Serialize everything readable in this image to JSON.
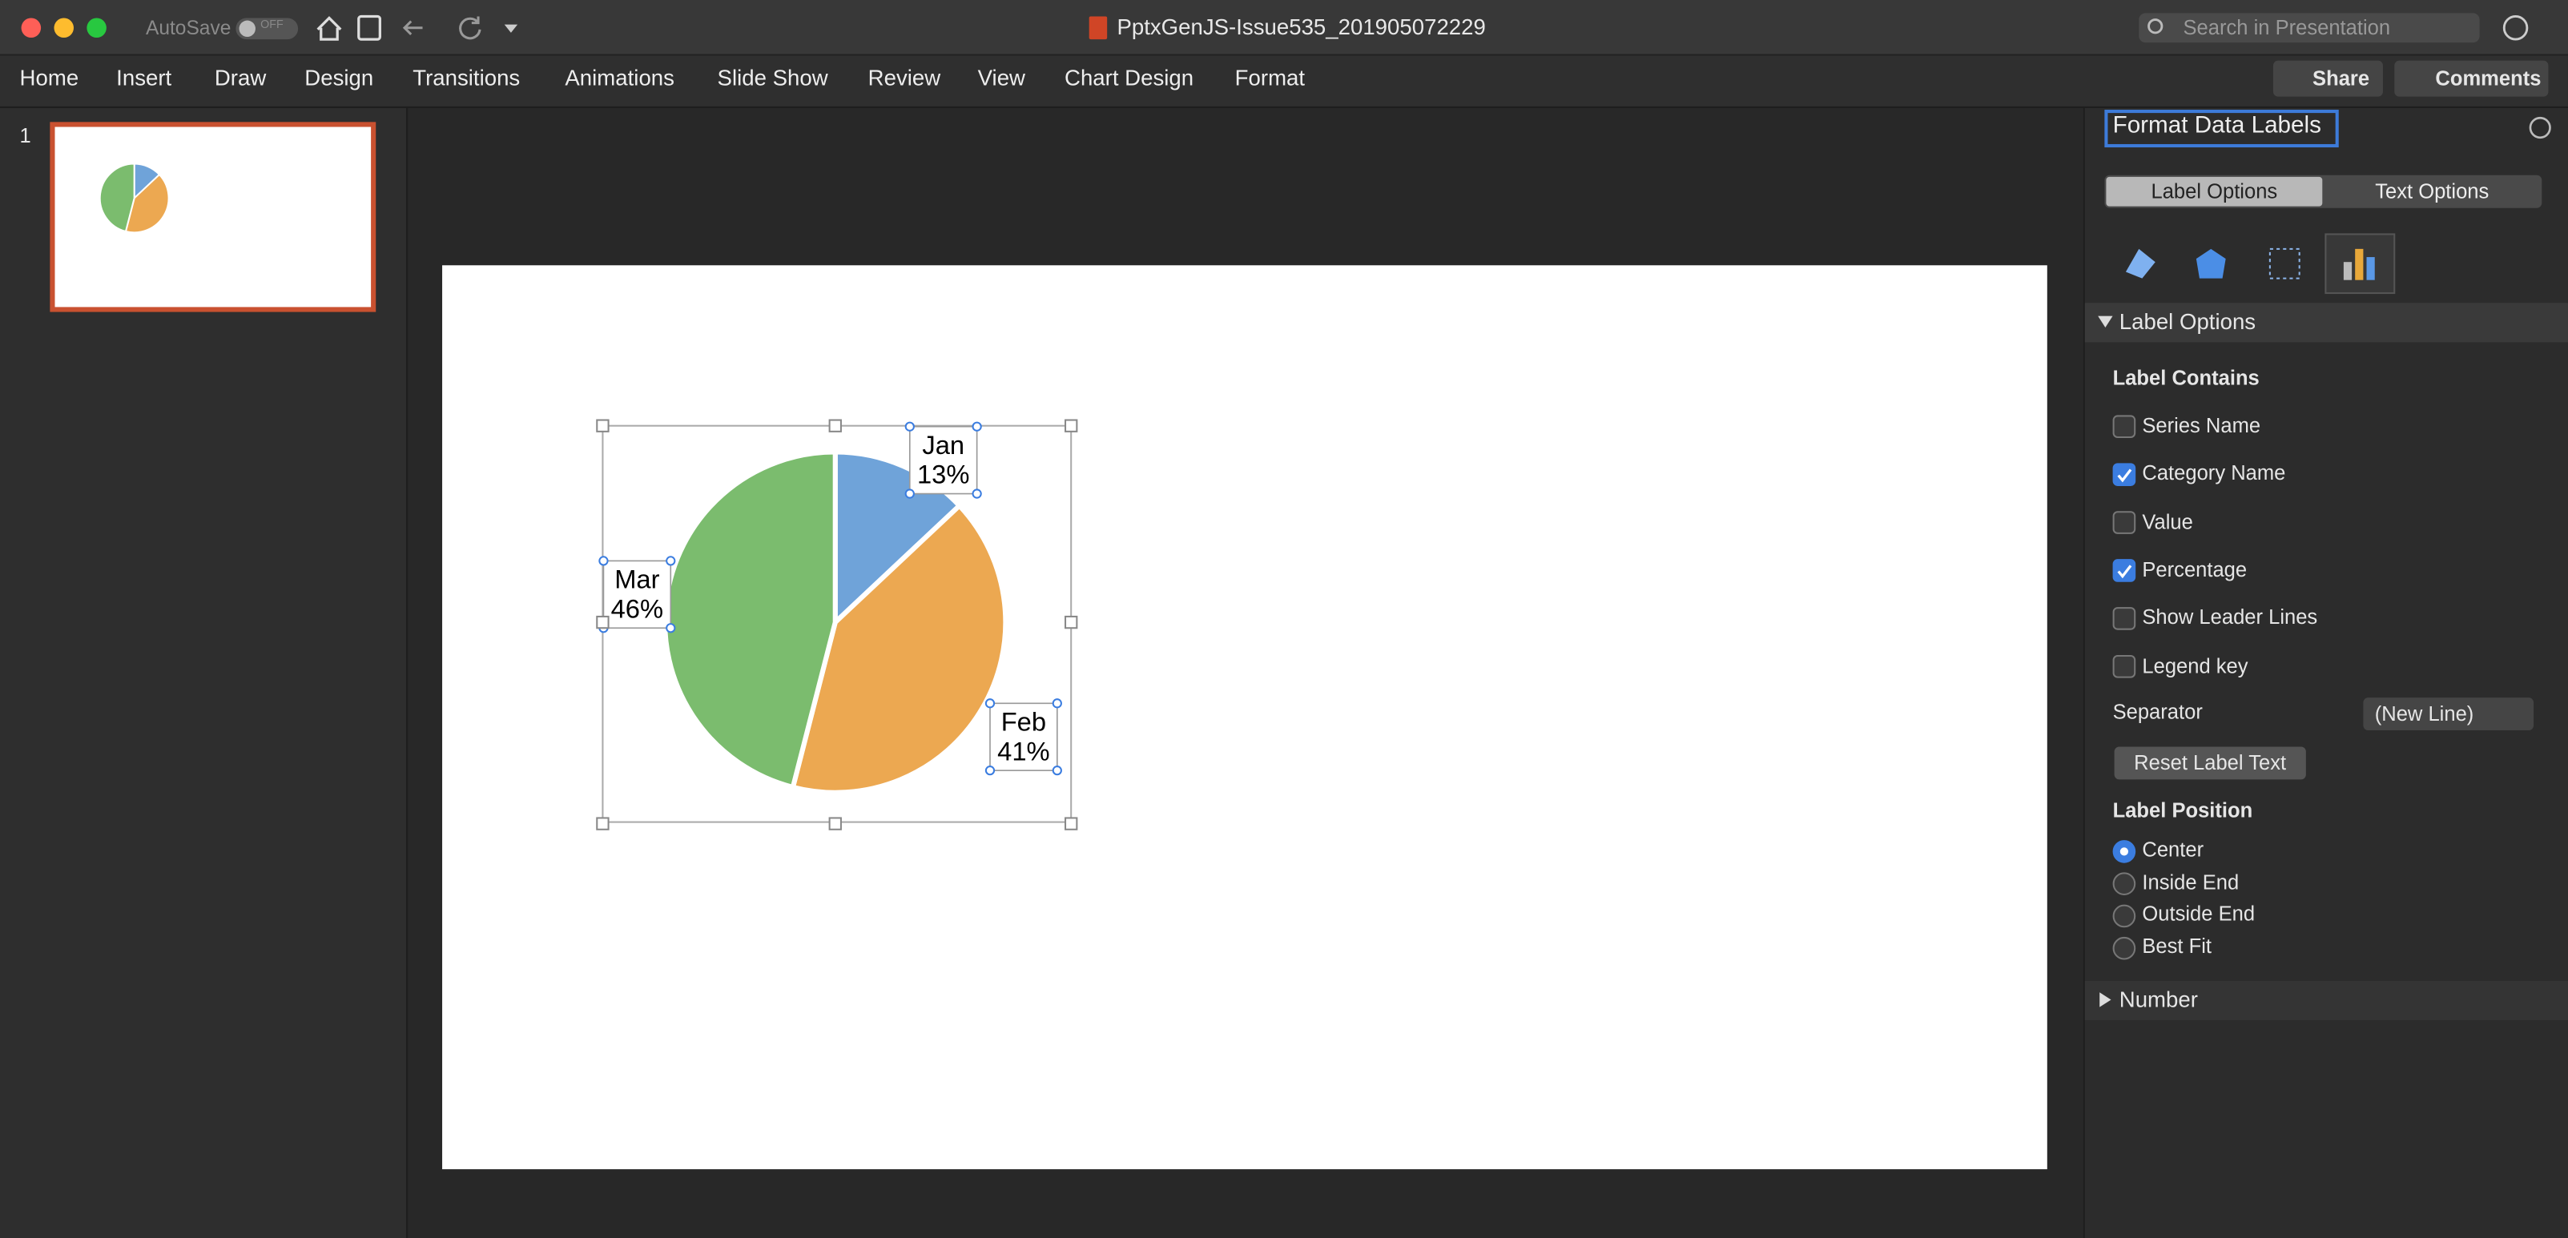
{
  "window": {
    "title": "PptxGenJS-Issue535_201905072229",
    "autosave": "AutoSave",
    "autosave_state": "OFF",
    "search_placeholder": "Search in Presentation"
  },
  "ribbon": {
    "tabs": [
      "Home",
      "Insert",
      "Draw",
      "Design",
      "Transitions",
      "Animations",
      "Slide Show",
      "Review",
      "View",
      "Chart Design",
      "Format"
    ],
    "share": "Share",
    "comments": "Comments"
  },
  "thumbnails": [
    {
      "number": 1
    }
  ],
  "slide": {
    "chart": {
      "type": "pie",
      "categories": [
        "Jan",
        "Feb",
        "Mar"
      ],
      "values": [
        13,
        41,
        46
      ],
      "value_labels": [
        "13%",
        "41%",
        "46%"
      ],
      "colors": [
        "#6fa3d9",
        "#eca851",
        "#7bbc6e"
      ]
    }
  },
  "panel": {
    "title": "Format Data Labels",
    "tabs": [
      "Label Options",
      "Text Options"
    ],
    "section": "Label Options",
    "label_contains": {
      "heading": "Label Contains",
      "options": [
        {
          "label": "Series Name",
          "checked": false
        },
        {
          "label": "Category Name",
          "checked": true
        },
        {
          "label": "Value",
          "checked": false
        },
        {
          "label": "Percentage",
          "checked": true
        },
        {
          "label": "Show Leader Lines",
          "checked": false
        },
        {
          "label": "Legend key",
          "checked": false
        }
      ]
    },
    "separator": {
      "label": "Separator",
      "value": "(New Line)"
    },
    "reset": "Reset Label Text",
    "label_position": {
      "heading": "Label Position",
      "options": [
        {
          "label": "Center",
          "selected": true
        },
        {
          "label": "Inside End",
          "selected": false
        },
        {
          "label": "Outside End",
          "selected": false
        },
        {
          "label": "Best Fit",
          "selected": false
        }
      ]
    },
    "number_section": "Number"
  }
}
